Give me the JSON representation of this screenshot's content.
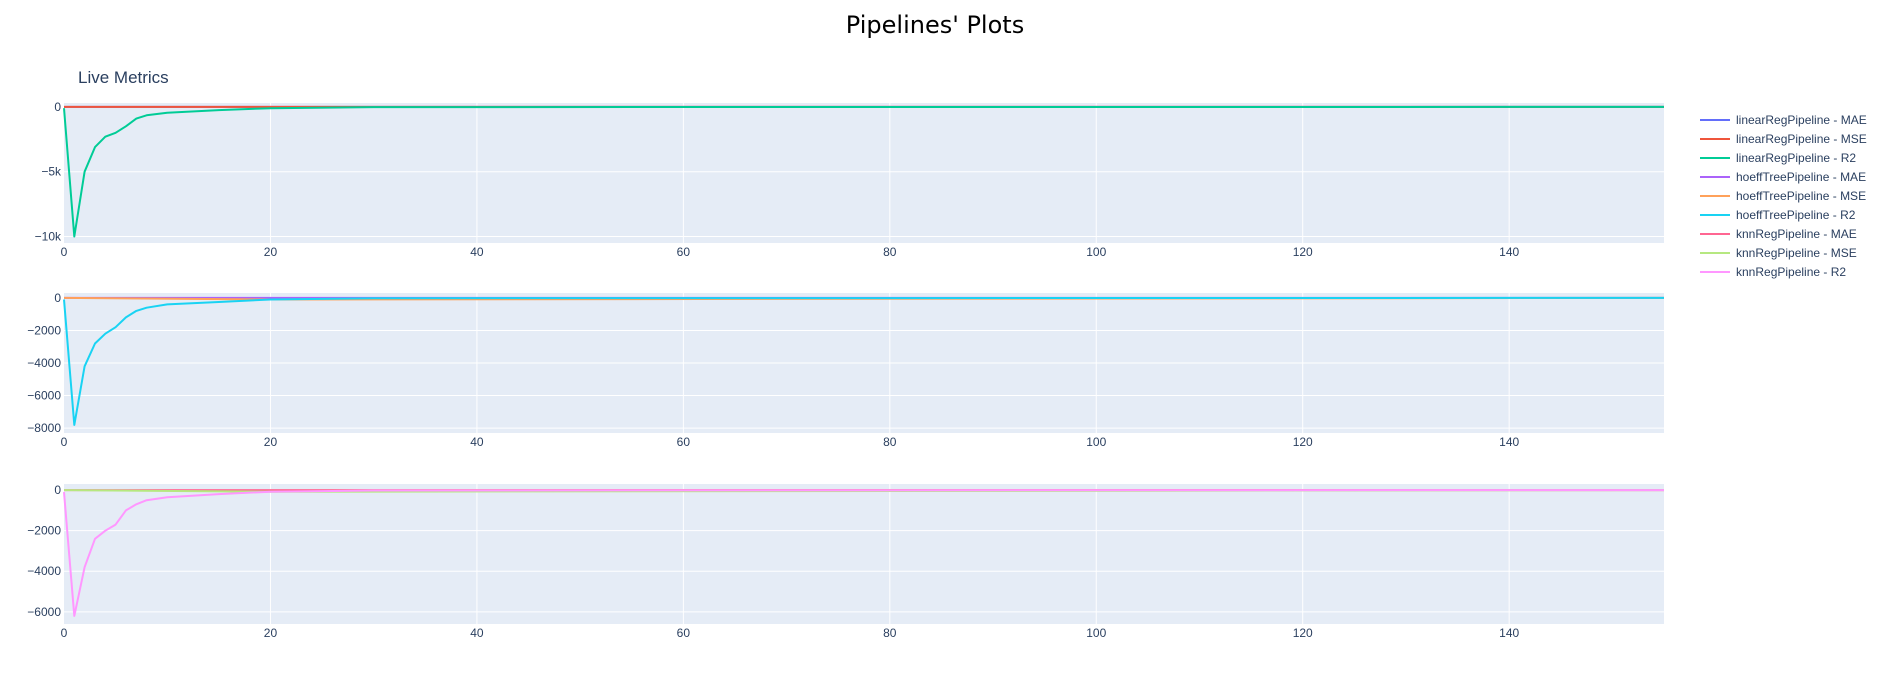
{
  "page": {
    "title": "Pipelines' Plots",
    "subtitle": "Live Metrics"
  },
  "legend": [
    {
      "label": "linearRegPipeline - MAE",
      "color": "#636efa"
    },
    {
      "label": "linearRegPipeline - MSE",
      "color": "#EF553B"
    },
    {
      "label": "linearRegPipeline - R2",
      "color": "#00cc96"
    },
    {
      "label": "hoeffTreePipeline - MAE",
      "color": "#ab63fa"
    },
    {
      "label": "hoeffTreePipeline - MSE",
      "color": "#FFA15A"
    },
    {
      "label": "hoeffTreePipeline - R2",
      "color": "#19d3f3"
    },
    {
      "label": "knnRegPipeline - MAE",
      "color": "#FF6692"
    },
    {
      "label": "knnRegPipeline - MSE",
      "color": "#B6E880"
    },
    {
      "label": "knnRegPipeline - R2",
      "color": "#FF97FF"
    }
  ],
  "chart_data": [
    {
      "type": "line",
      "xlim": [
        0,
        155
      ],
      "ylim": [
        -10500,
        300
      ],
      "x_ticks": [
        0,
        20,
        40,
        60,
        80,
        100,
        120,
        140
      ],
      "y_ticks": [
        0,
        -5000,
        -10000
      ],
      "y_tick_labels": [
        "0",
        "−5k",
        "−10k"
      ],
      "grid": true,
      "series": [
        {
          "name": "linearRegPipeline - MAE",
          "color": "#636efa",
          "x": [
            0,
            155
          ],
          "y": [
            0,
            0
          ]
        },
        {
          "name": "linearRegPipeline - MSE",
          "color": "#EF553B",
          "x": [
            0,
            155
          ],
          "y": [
            0,
            0
          ]
        },
        {
          "name": "linearRegPipeline - R2",
          "color": "#00cc96",
          "x": [
            0,
            1,
            2,
            3,
            4,
            5,
            6,
            7,
            8,
            10,
            15,
            20,
            30,
            155
          ],
          "y": [
            -100,
            -10000,
            -5000,
            -3100,
            -2300,
            -2000,
            -1500,
            -900,
            -650,
            -450,
            -250,
            -100,
            -20,
            0
          ]
        }
      ]
    },
    {
      "type": "line",
      "xlim": [
        0,
        155
      ],
      "ylim": [
        -8300,
        300
      ],
      "x_ticks": [
        0,
        20,
        40,
        60,
        80,
        100,
        120,
        140
      ],
      "y_ticks": [
        0,
        -2000,
        -4000,
        -6000,
        -8000
      ],
      "y_tick_labels": [
        "0",
        "−2000",
        "−4000",
        "−6000",
        "−8000"
      ],
      "grid": true,
      "series": [
        {
          "name": "hoeffTreePipeline - MAE",
          "color": "#ab63fa",
          "x": [
            0,
            155
          ],
          "y": [
            0,
            0
          ]
        },
        {
          "name": "hoeffTreePipeline - MSE",
          "color": "#FFA15A",
          "x": [
            0,
            20,
            155
          ],
          "y": [
            0,
            -100,
            0
          ]
        },
        {
          "name": "hoeffTreePipeline - R2",
          "color": "#19d3f3",
          "x": [
            0,
            1,
            2,
            3,
            4,
            5,
            6,
            7,
            8,
            10,
            15,
            20,
            30,
            155
          ],
          "y": [
            -100,
            -7800,
            -4200,
            -2800,
            -2200,
            -1800,
            -1200,
            -800,
            -600,
            -400,
            -250,
            -100,
            -20,
            0
          ]
        }
      ]
    },
    {
      "type": "line",
      "xlim": [
        0,
        155
      ],
      "ylim": [
        -6600,
        300
      ],
      "x_ticks": [
        0,
        20,
        40,
        60,
        80,
        100,
        120,
        140
      ],
      "y_ticks": [
        0,
        -2000,
        -4000,
        -6000
      ],
      "y_tick_labels": [
        "0",
        "−2000",
        "−4000",
        "−6000"
      ],
      "grid": true,
      "series": [
        {
          "name": "knnRegPipeline - MAE",
          "color": "#FF6692",
          "x": [
            0,
            155
          ],
          "y": [
            0,
            0
          ]
        },
        {
          "name": "knnRegPipeline - MSE",
          "color": "#B6E880",
          "x": [
            0,
            20,
            155
          ],
          "y": [
            0,
            -80,
            0
          ]
        },
        {
          "name": "knnRegPipeline - R2",
          "color": "#FF97FF",
          "x": [
            0,
            1,
            2,
            3,
            4,
            5,
            6,
            7,
            8,
            10,
            15,
            20,
            30,
            155
          ],
          "y": [
            -100,
            -6200,
            -3800,
            -2400,
            -2000,
            -1700,
            -1000,
            -700,
            -500,
            -350,
            -200,
            -80,
            -20,
            0
          ]
        }
      ]
    }
  ]
}
